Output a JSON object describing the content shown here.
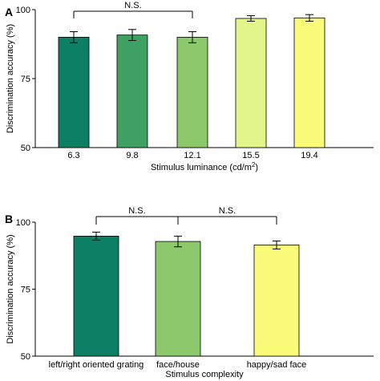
{
  "chart_data": [
    {
      "type": "bar",
      "panel_label": "A",
      "categories": [
        "6.3",
        "9.8",
        "12.1",
        "15.5",
        "19.4"
      ],
      "values": [
        90,
        90.8,
        90,
        96.8,
        97
      ],
      "errors": [
        2,
        2,
        2,
        1,
        1.2
      ],
      "colors": [
        "#0d7f64",
        "#3fa063",
        "#8cc96c",
        "#e2f58a",
        "#fbfb7a"
      ],
      "xlabel": "Stimulus luminance (cd/m",
      "xlabel_sup": "2",
      "xlabel_end": ")",
      "ylabel": "Discrimination accuracy (%)",
      "ylim": [
        50,
        100
      ],
      "yticks": [
        50,
        75,
        100
      ],
      "significance": [
        {
          "from": 0,
          "to": 2,
          "label": "N.S."
        }
      ]
    },
    {
      "type": "bar",
      "panel_label": "B",
      "categories": [
        "left/right oriented grating",
        "face/house",
        "happy/sad face"
      ],
      "values": [
        94.8,
        92.8,
        91.5
      ],
      "errors": [
        1.5,
        2,
        1.5
      ],
      "colors": [
        "#0d7f64",
        "#8cc96c",
        "#fbfb7a"
      ],
      "xlabel": "Stimulus complexity",
      "ylabel": "Discrimination accuracy (%)",
      "ylim": [
        50,
        100
      ],
      "yticks": [
        50,
        75,
        100
      ],
      "significance": [
        {
          "from": 0,
          "to": 1,
          "label": "N.S."
        },
        {
          "from": 1,
          "to": 2,
          "label": "N.S."
        }
      ]
    }
  ]
}
